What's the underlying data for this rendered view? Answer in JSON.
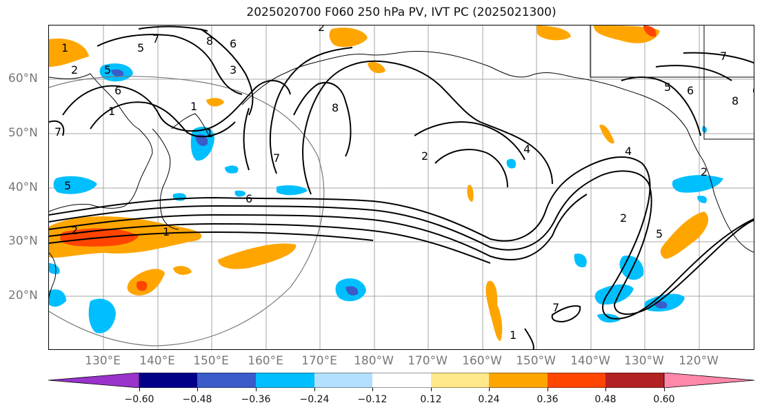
{
  "title": "2025020700 F060 250 hPa PV, IVT PC (2025021300)",
  "latitude_labels": [
    "60°N",
    "50°N",
    "40°N",
    "30°N",
    "20°N"
  ],
  "longitude_labels": [
    "130°E",
    "140°E",
    "150°E",
    "160°E",
    "170°E",
    "180°W",
    "170°W",
    "160°W",
    "150°W",
    "140°W",
    "130°W",
    "120°W"
  ],
  "colorbar": {
    "ticks": [
      "−0.60",
      "−0.48",
      "−0.36",
      "−0.24",
      "−0.12",
      "0.12",
      "0.24",
      "0.36",
      "0.48",
      "0.60"
    ],
    "colors": [
      "#9933cc",
      "#000088",
      "#3a5bc8",
      "#00bfff",
      "#b3e0ff",
      "#ffffff",
      "#ffe98a",
      "#ffa500",
      "#ff4500",
      "#b22222",
      "#ff88aa"
    ]
  },
  "contour_labels": [
    "2",
    "5",
    "7",
    "8",
    "6",
    "3",
    "1",
    "1",
    "8",
    "2",
    "7",
    "7",
    "5",
    "6",
    "1",
    "2",
    "1",
    "2",
    "2",
    "4",
    "6",
    "4",
    "5",
    "6",
    "8",
    "7",
    "1",
    "2",
    "5",
    "7",
    "1",
    "5",
    "6"
  ],
  "map": {
    "projection": "latitude-longitude",
    "extent": {
      "lon_min": 120,
      "lon_max": 250,
      "lat_min": 10,
      "lat_max": 70
    },
    "field_filled": "IVT PC",
    "field_contours": "250 hPa PV",
    "contour_color": "#000000",
    "grid_color": "#999999"
  }
}
